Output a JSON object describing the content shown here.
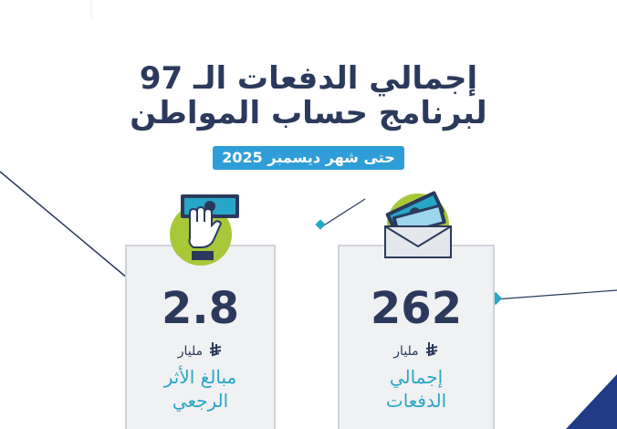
{
  "header": {
    "title_line1": "إجمالي الدفعات الـ 97",
    "title_line2": "لبرنامج حساب المواطن",
    "date_label": "حتى شهر ديسمبر 2025"
  },
  "cards": [
    {
      "value": "2.8",
      "unit": "مليار",
      "label_line1": "مبالغ الأثر",
      "label_line2": "الرجعي",
      "icon": "hand-cash-icon"
    },
    {
      "value": "262",
      "unit": "مليار",
      "label_line1": "إجمالي",
      "label_line2": "الدفعات",
      "icon": "envelope-cash-icon"
    }
  ],
  "colors": {
    "navy": "#2b3a5c",
    "blue": "#2f9ed8",
    "teal": "#27a6c7",
    "lime": "#a8c83a",
    "card_bg": "#f0f1f3"
  }
}
